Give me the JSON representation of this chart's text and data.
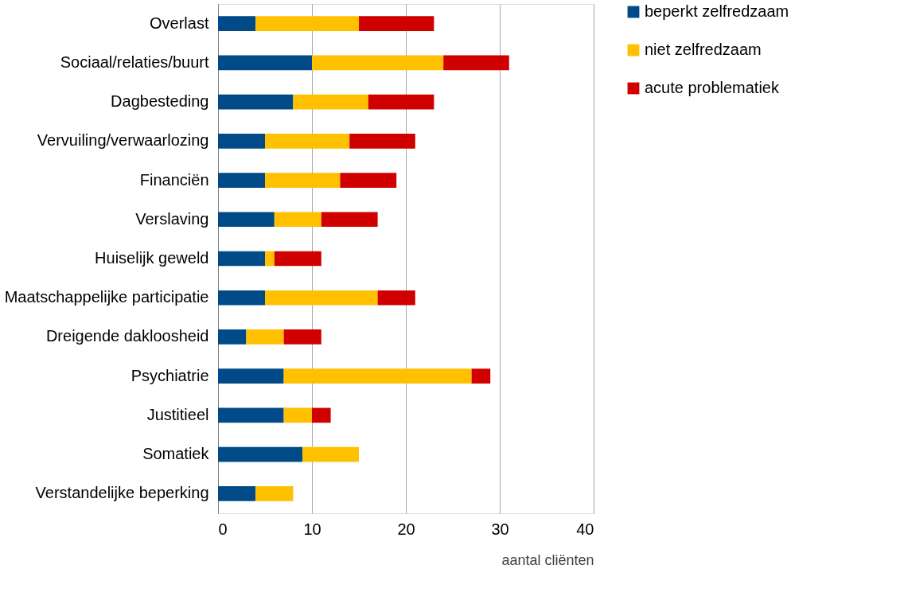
{
  "chart_data": {
    "type": "bar",
    "orientation": "horizontal",
    "stacked": true,
    "xlabel": "aantal cliënten",
    "categories": [
      "Overlast",
      "Sociaal/relaties/buurt",
      "Dagbesteding",
      "Vervuiling/verwaarlozing",
      "Financiën",
      "Verslaving",
      "Huiselijk geweld",
      "Maatschappelijke participatie",
      "Dreigende dakloosheid",
      "Psychiatrie",
      "Justitieel",
      "Somatiek",
      "Verstandelijke beperking"
    ],
    "series": [
      {
        "name": "beperkt zelfredzaam",
        "color": "#004a87",
        "values": [
          4,
          10,
          8,
          5,
          5,
          6,
          5,
          5,
          3,
          7,
          7,
          9,
          4
        ]
      },
      {
        "name": "niet zelfredzaam",
        "color": "#ffc000",
        "values": [
          11,
          14,
          8,
          9,
          8,
          5,
          1,
          12,
          4,
          20,
          3,
          6,
          4
        ]
      },
      {
        "name": "acute problematiek",
        "color": "#d00000",
        "values": [
          8,
          7,
          7,
          7,
          6,
          6,
          5,
          4,
          4,
          2,
          2,
          0,
          0
        ]
      }
    ],
    "xlim": [
      0,
      40
    ],
    "xticks": [
      0,
      10,
      20,
      30,
      40
    ],
    "grid": "x",
    "legend": "right"
  }
}
